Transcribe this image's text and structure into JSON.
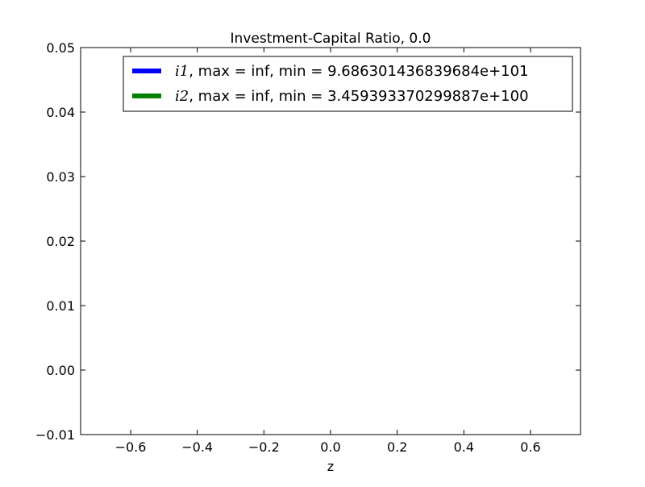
{
  "chart_data": {
    "type": "line",
    "title": "Investment-Capital Ratio, 0.0",
    "xlabel": "z",
    "ylabel": "",
    "xlim": [
      -0.75,
      0.75
    ],
    "ylim": [
      -0.01,
      0.05
    ],
    "xticks": [
      -0.6,
      -0.4,
      -0.2,
      0.0,
      0.2,
      0.4,
      0.6
    ],
    "xtick_labels": [
      "−0.6",
      "−0.4",
      "−0.2",
      "0.0",
      "0.2",
      "0.4",
      "0.6"
    ],
    "yticks": [
      -0.01,
      0.0,
      0.01,
      0.02,
      0.03,
      0.04,
      0.05
    ],
    "ytick_labels": [
      "−0.01",
      "0.00",
      "0.01",
      "0.02",
      "0.03",
      "0.04",
      "0.05"
    ],
    "grid": false,
    "legend_position": "top-right",
    "series": [
      {
        "name": "i1",
        "math_label": "i",
        "math_sub": "1",
        "label_rest": ", max = inf, min = 9.686301436839684e+101",
        "color": "#0000ff",
        "values": []
      },
      {
        "name": "i2",
        "math_label": "i",
        "math_sub": "2",
        "label_rest": ", max = inf, min = 3.459393370299887e+100",
        "color": "#008000",
        "values": []
      }
    ]
  }
}
